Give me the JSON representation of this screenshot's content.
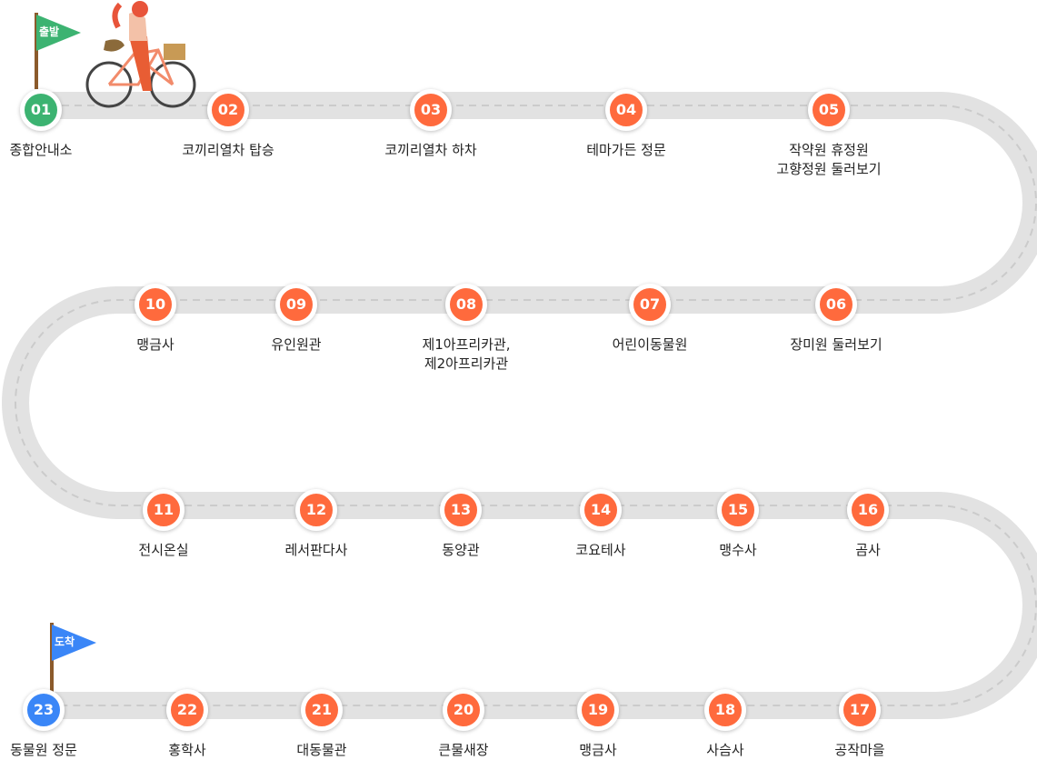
{
  "colors": {
    "start": "#3cb371",
    "end": "#3a86f7",
    "stop": "#ff6a3d",
    "road": "#e2e2e2"
  },
  "flags": {
    "start": "출발",
    "end": "도착"
  },
  "stops": [
    {
      "num": "01",
      "label": "종합안내소",
      "type": "start"
    },
    {
      "num": "02",
      "label": "코끼리열차 탑승"
    },
    {
      "num": "03",
      "label": "코끼리열차 하차"
    },
    {
      "num": "04",
      "label": "테마가든 정문"
    },
    {
      "num": "05",
      "label": "작약원 휴정원\n고향정원 둘러보기"
    },
    {
      "num": "06",
      "label": "장미원 둘러보기"
    },
    {
      "num": "07",
      "label": "어린이동물원"
    },
    {
      "num": "08",
      "label": "제1아프리카관,\n제2아프리카관"
    },
    {
      "num": "09",
      "label": "유인원관"
    },
    {
      "num": "10",
      "label": "맹금사"
    },
    {
      "num": "11",
      "label": "전시온실"
    },
    {
      "num": "12",
      "label": "레서판다사"
    },
    {
      "num": "13",
      "label": "동양관"
    },
    {
      "num": "14",
      "label": "코요테사"
    },
    {
      "num": "15",
      "label": "맹수사"
    },
    {
      "num": "16",
      "label": "곰사"
    },
    {
      "num": "17",
      "label": "공작마을"
    },
    {
      "num": "18",
      "label": "사슴사"
    },
    {
      "num": "19",
      "label": "맹금사"
    },
    {
      "num": "20",
      "label": "큰물새장"
    },
    {
      "num": "21",
      "label": "대동물관"
    },
    {
      "num": "22",
      "label": "홍학사"
    },
    {
      "num": "23",
      "label": "동물원 정문",
      "type": "end"
    }
  ]
}
